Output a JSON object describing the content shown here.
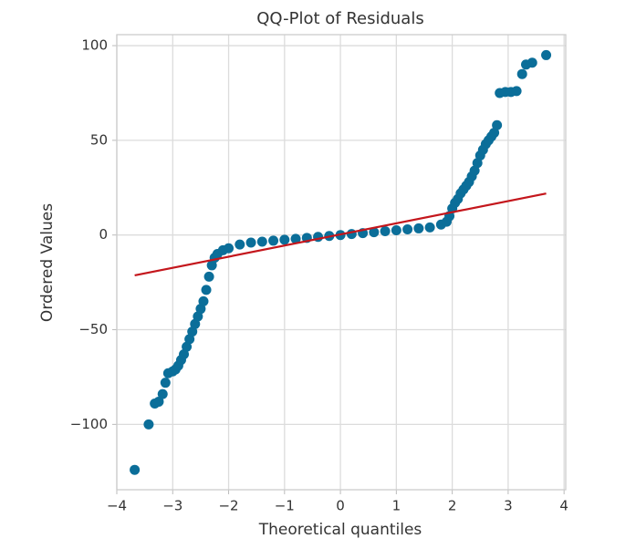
{
  "chart_data": {
    "type": "scatter",
    "title": "QQ-Plot of Residuals",
    "x_label": "Theoretical quantiles",
    "y_label": "Ordered Values",
    "xlim": [
      -4.0,
      4.03
    ],
    "ylim": [
      -134.5,
      105.8
    ],
    "xticks": [
      {
        "value": -4,
        "label": "−4"
      },
      {
        "value": -3,
        "label": "−3"
      },
      {
        "value": -2,
        "label": "−2"
      },
      {
        "value": -1,
        "label": "−1"
      },
      0,
      1,
      2,
      3,
      4
    ],
    "yticks": [
      100,
      50,
      0,
      {
        "value": -50,
        "label": "−50"
      },
      {
        "value": -100,
        "label": "−100"
      }
    ],
    "grid": true,
    "points": {
      "color": "#0b6e99",
      "x": [
        -3.68,
        -3.43,
        -3.32,
        -3.25,
        -3.18,
        -3.13,
        -3.08,
        -3.0,
        -2.95,
        -2.9,
        -2.85,
        -2.8,
        -2.75,
        -2.7,
        -2.65,
        -2.6,
        -2.55,
        -2.5,
        -2.45,
        -2.4,
        -2.35,
        -2.3,
        -2.25,
        -2.2,
        -2.1,
        -2.0,
        -1.8,
        -1.6,
        -1.4,
        -1.2,
        -1.0,
        -0.8,
        -0.6,
        -0.4,
        -0.2,
        0,
        0.2,
        0.4,
        0.6,
        0.8,
        1.0,
        1.2,
        1.4,
        1.6,
        1.8,
        1.9,
        1.95,
        2.0,
        2.05,
        2.1,
        2.15,
        2.2,
        2.25,
        2.3,
        2.35,
        2.4,
        2.45,
        2.5,
        2.55,
        2.6,
        2.65,
        2.7,
        2.75,
        2.8,
        2.85,
        2.95,
        3.05,
        3.15,
        3.25,
        3.32,
        3.43,
        3.68
      ],
      "y": [
        -124,
        -100,
        -89,
        -88,
        -84,
        -78,
        -73,
        -72,
        -71,
        -69,
        -66,
        -63,
        -59,
        -55,
        -51,
        -47,
        -43,
        -39,
        -35,
        -29,
        -22,
        -16,
        -12,
        -10,
        -8,
        -7,
        -5,
        -4,
        -3.5,
        -3,
        -2.5,
        -2,
        -1.5,
        -1,
        -0.5,
        0,
        0.5,
        1,
        1.5,
        2,
        2.5,
        3,
        3.5,
        4,
        5.5,
        7,
        10,
        14,
        17,
        19,
        22,
        24,
        26,
        28,
        31,
        34,
        38,
        42,
        45,
        48,
        50,
        52,
        54,
        58,
        75,
        75.5,
        75.5,
        76,
        85,
        90,
        91,
        95
      ]
    },
    "fit_line": {
      "color": "#c4161c",
      "x": [
        -3.68,
        3.68
      ],
      "y": [
        -21.3,
        21.9
      ]
    }
  }
}
